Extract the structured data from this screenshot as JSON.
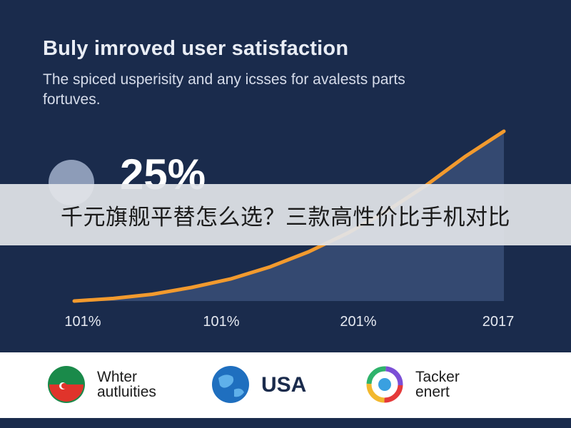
{
  "header": {
    "title": "Buly imroved user satisfaction",
    "subtitle": "The spiced usperisity and any icsses for avalests parts fortuves."
  },
  "kpi": {
    "value": "25%"
  },
  "banner": {
    "text": "千元旗舰平替怎么选？三款高性价比手机对比"
  },
  "chart_data": {
    "type": "area",
    "title": "Buly imroved user satisfaction",
    "xlabel": "",
    "ylabel": "",
    "x_tick_labels": [
      "101%",
      "101%",
      "201%",
      "2017"
    ],
    "series": [
      {
        "values": [
          0,
          1.5,
          4,
          8,
          13,
          20,
          29,
          40,
          53,
          68,
          85,
          100
        ]
      }
    ],
    "ylim": [
      0,
      100
    ],
    "grid": false,
    "colors": {
      "line": "#f29a2e",
      "fill": "#3a4f78"
    }
  },
  "footer": {
    "partners": [
      {
        "icon": "flag-badge-icon",
        "label_lines": [
          "Whter",
          "autluities"
        ]
      },
      {
        "icon": "globe-icon",
        "label_lines": [
          "USA"
        ]
      },
      {
        "icon": "rainbow-ring-icon",
        "label_lines": [
          "Tacker",
          "enert"
        ]
      }
    ]
  }
}
